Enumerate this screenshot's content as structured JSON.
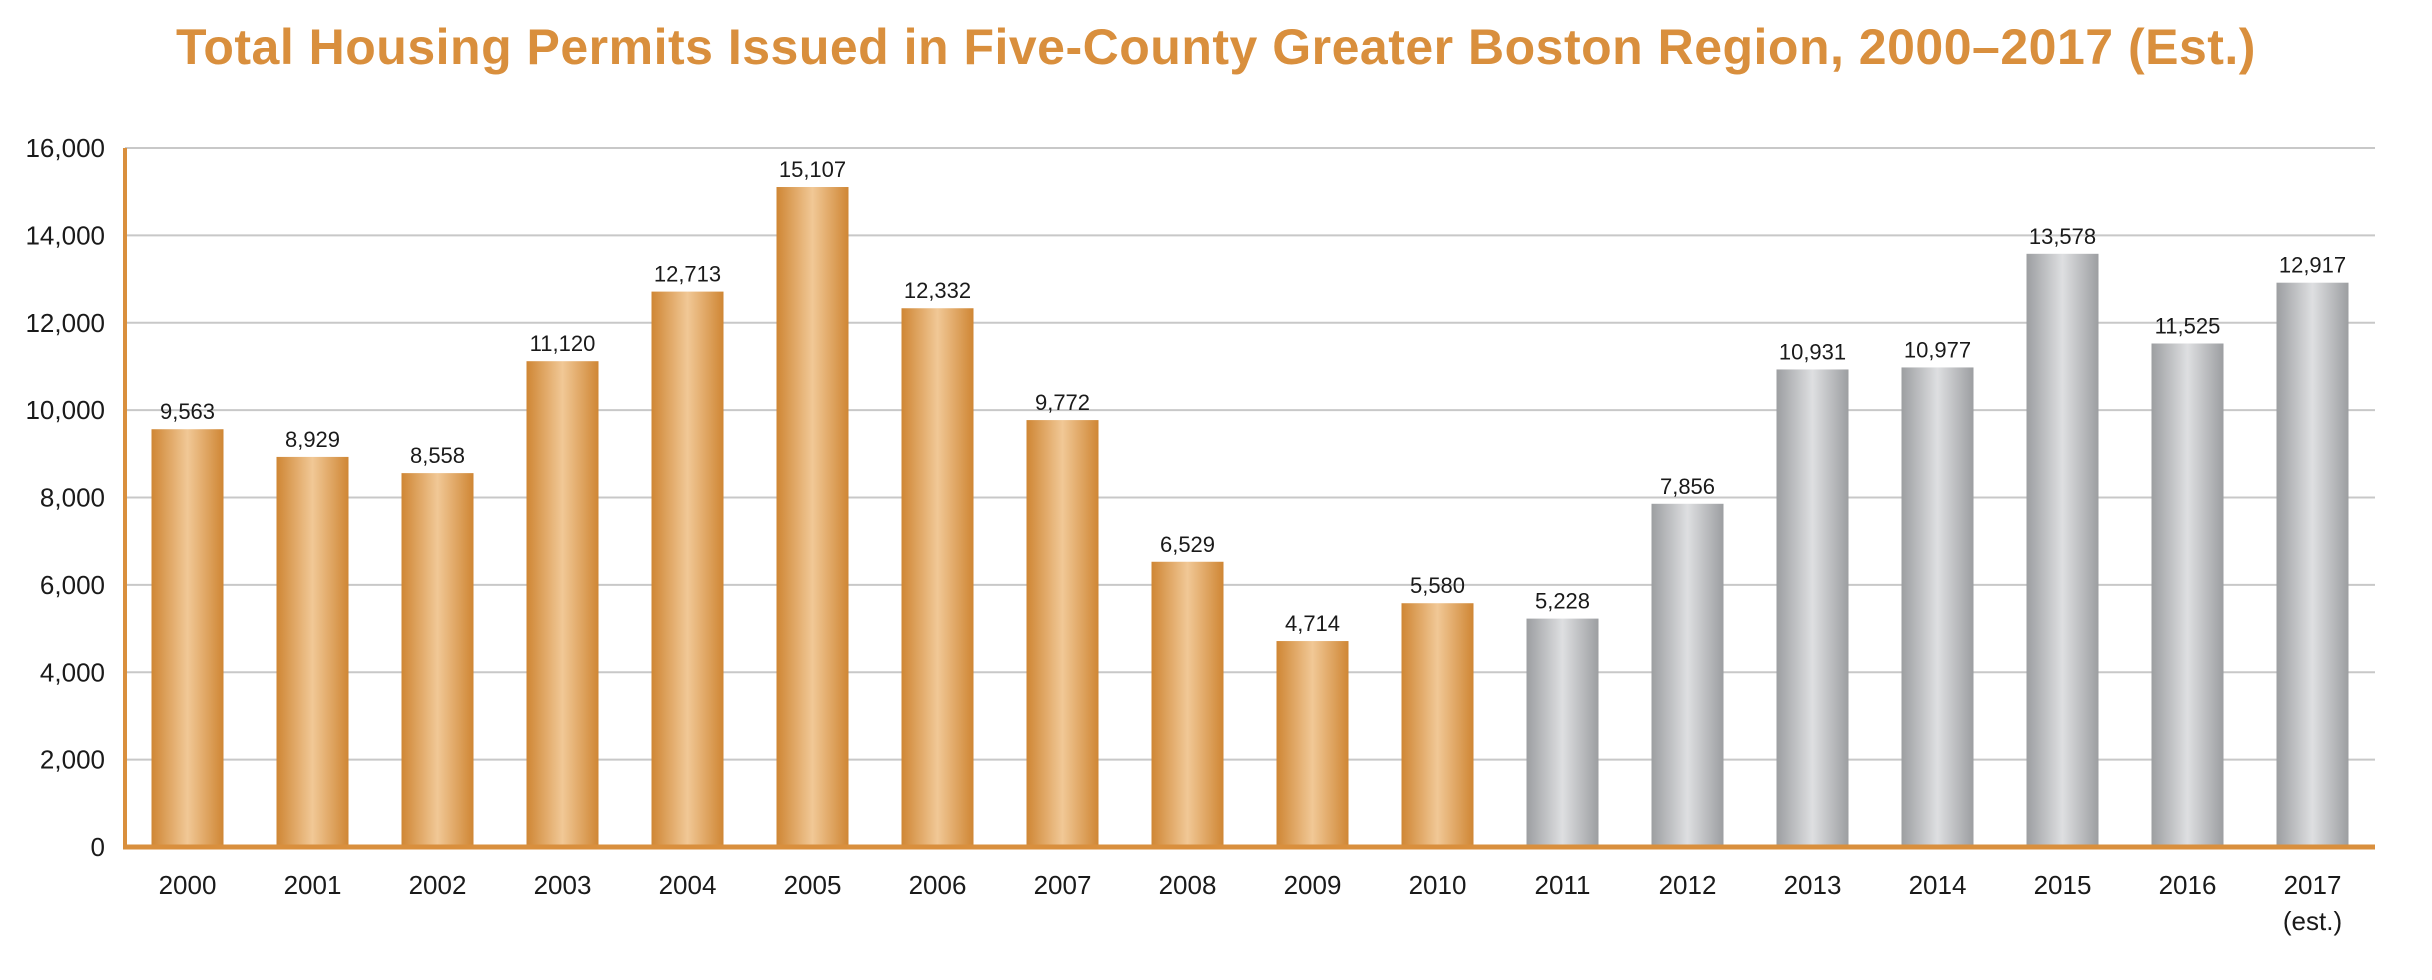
{
  "chart_data": {
    "type": "bar",
    "title": "Total Housing Permits Issued in Five-County Greater Boston Region, 2000–2017 (Est.)",
    "xlabel": "",
    "ylabel": "",
    "ylim": [
      0,
      16000
    ],
    "yticks": [
      0,
      2000,
      4000,
      6000,
      8000,
      10000,
      12000,
      14000,
      16000
    ],
    "ytick_labels": [
      "0",
      "2,000",
      "4,000",
      "6,000",
      "8,000",
      "10,000",
      "12,000",
      "14,000",
      "16,000"
    ],
    "grid": true,
    "categories": [
      "2000",
      "2001",
      "2002",
      "2003",
      "2004",
      "2005",
      "2006",
      "2007",
      "2008",
      "2009",
      "2010",
      "2011",
      "2012",
      "2013",
      "2014",
      "2015",
      "2016",
      "2017"
    ],
    "category_sublabels": [
      "",
      "",
      "",
      "",
      "",
      "",
      "",
      "",
      "",
      "",
      "",
      "",
      "",
      "",
      "",
      "",
      "",
      "(est.)"
    ],
    "values": [
      9563,
      8929,
      8558,
      11120,
      12713,
      15107,
      12332,
      9772,
      6529,
      4714,
      5580,
      5228,
      7856,
      10931,
      10977,
      13578,
      11525,
      12917
    ],
    "value_labels": [
      "9,563",
      "8,929",
      "8,558",
      "11,120",
      "12,713",
      "15,107",
      "12,332",
      "9,772",
      "6,529",
      "4,714",
      "5,580",
      "5,228",
      "7,856",
      "10,931",
      "10,977",
      "13,578",
      "11,525",
      "12,917"
    ],
    "bar_groups": [
      "orange",
      "orange",
      "orange",
      "orange",
      "orange",
      "orange",
      "orange",
      "orange",
      "orange",
      "orange",
      "orange",
      "gray",
      "gray",
      "gray",
      "gray",
      "gray",
      "gray",
      "gray"
    ]
  },
  "colors": {
    "title": "#d98f3d",
    "orange_edge": "#cf8634",
    "orange_mid": "#f1c896",
    "gray_edge": "#9c9ea1",
    "gray_mid": "#dedfe1",
    "axis": "#d98f3d",
    "grid": "#c8c8c8"
  }
}
